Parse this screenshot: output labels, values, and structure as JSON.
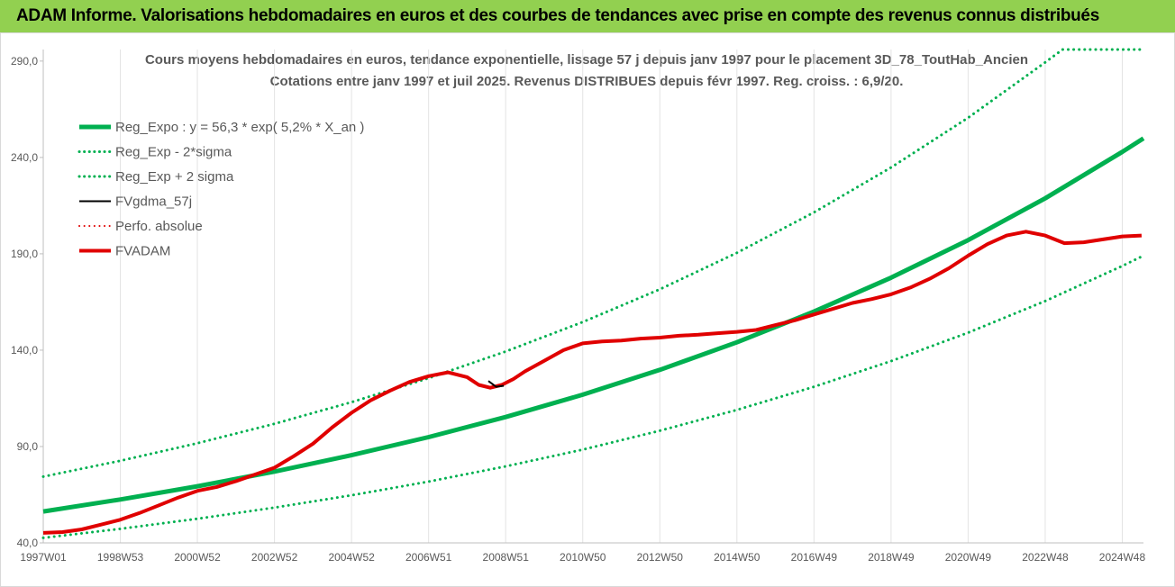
{
  "banner": {
    "title": "ADAM Informe. Valorisations hebdomadaires en euros et des courbes de tendances avec prise en compte des revenus connus distribués"
  },
  "chart_data": {
    "type": "line",
    "title": "Cours moyens hebdomadaires en euros, tendance exponentielle, lissage 57 j depuis janv 1997 pour le placement 3D_78_ToutHab_Ancien",
    "subtitle": "Cotations entre janv 1997 et juil 2025. Revenus DISTRIBUES depuis févr 1997. Reg. croiss. : 6,9/20.",
    "xlabel": "",
    "ylabel": "",
    "x_ticks": [
      "1997W01",
      "1998W53",
      "2000W52",
      "2002W52",
      "2004W52",
      "2006W51",
      "2008W51",
      "2010W50",
      "2012W50",
      "2014W50",
      "2016W49",
      "2018W49",
      "2020W49",
      "2022W48",
      "2024W48"
    ],
    "x_tick_years": [
      1997.0,
      1999.0,
      2001.0,
      2003.0,
      2005.0,
      2007.0,
      2009.0,
      2011.0,
      2013.0,
      2015.0,
      2017.0,
      2019.0,
      2021.0,
      2023.0,
      2025.0
    ],
    "x_range": [
      1997.0,
      2025.55
    ],
    "y_ticks": [
      "40,0",
      "90,0",
      "140,0",
      "190,0",
      "240,0",
      "290,0"
    ],
    "y_tick_values": [
      40,
      90,
      140,
      190,
      240,
      290
    ],
    "ylim": [
      40,
      296
    ],
    "grid": "vertical",
    "legend_position": "top-left",
    "colors": {
      "reg_expo": "#00b050",
      "bands": "#00b050",
      "fvgdma": "#000000",
      "perfo": "#e00000",
      "fvadam": "#e00000"
    },
    "series": [
      {
        "name": "Reg_Expo : y = 56,3 * exp( 5,2% *  X_an )",
        "style": "solid",
        "color": "#00b050",
        "width": 5,
        "x": [
          1997.0,
          1999.0,
          2001.0,
          2003.0,
          2005.0,
          2007.0,
          2009.0,
          2011.0,
          2013.0,
          2015.0,
          2017.0,
          2019.0,
          2021.0,
          2023.0,
          2025.0,
          2025.55
        ],
        "y": [
          56.3,
          62.5,
          69.4,
          77.0,
          85.5,
          94.9,
          105.3,
          116.9,
          129.8,
          144.1,
          160.0,
          177.6,
          197.1,
          218.8,
          242.9,
          249.9
        ]
      },
      {
        "name": "Reg_Exp - 2*sigma",
        "style": "dotted",
        "color": "#00b050",
        "width": 3,
        "x": [
          1997.0,
          1999.0,
          2001.0,
          2003.0,
          2005.0,
          2007.0,
          2009.0,
          2011.0,
          2013.0,
          2015.0,
          2017.0,
          2019.0,
          2021.0,
          2023.0,
          2025.0,
          2025.55
        ],
        "y": [
          42.6,
          47.3,
          52.5,
          58.3,
          64.7,
          71.8,
          79.7,
          88.4,
          98.2,
          109.0,
          121.0,
          134.3,
          149.1,
          165.5,
          183.7,
          189.0
        ]
      },
      {
        "name": "Reg_Exp + 2 sigma",
        "style": "dotted",
        "color": "#00b050",
        "width": 3,
        "x": [
          1997.0,
          1999.0,
          2001.0,
          2003.0,
          2005.0,
          2007.0,
          2009.0,
          2011.0,
          2013.0,
          2015.0,
          2017.0,
          2019.0,
          2021.0,
          2023.0,
          2023.45,
          2025.55
        ],
        "y": [
          74.4,
          82.6,
          91.7,
          101.8,
          113.0,
          125.5,
          139.3,
          154.6,
          171.6,
          190.5,
          211.5,
          234.8,
          260.6,
          289.3,
          296.0,
          296.0
        ]
      },
      {
        "name": "FVgdma_57j",
        "style": "solid",
        "color": "#000000",
        "width": 2,
        "x": [
          2008.55,
          2008.75,
          2008.95
        ],
        "y": [
          124.0,
          121.0,
          121.5
        ]
      },
      {
        "name": "Perfo. absolue",
        "style": "dotted",
        "color": "#e00000",
        "width": 2,
        "x": [],
        "y": []
      },
      {
        "name": "FVADAM",
        "style": "solid",
        "color": "#e00000",
        "width": 4,
        "x": [
          1997.0,
          1997.5,
          1998.0,
          1998.5,
          1999.0,
          1999.5,
          2000.0,
          2000.5,
          2001.0,
          2001.5,
          2002.0,
          2002.5,
          2003.0,
          2003.5,
          2004.0,
          2004.5,
          2005.0,
          2005.5,
          2006.0,
          2006.5,
          2007.0,
          2007.5,
          2008.0,
          2008.3,
          2008.6,
          2008.9,
          2009.2,
          2009.5,
          2010.0,
          2010.5,
          2011.0,
          2011.5,
          2012.0,
          2012.5,
          2013.0,
          2013.5,
          2014.0,
          2014.5,
          2015.0,
          2015.5,
          2016.0,
          2016.5,
          2017.0,
          2017.5,
          2018.0,
          2018.5,
          2019.0,
          2019.5,
          2020.0,
          2020.5,
          2021.0,
          2021.5,
          2022.0,
          2022.5,
          2023.0,
          2023.5,
          2024.0,
          2024.5,
          2025.0,
          2025.5
        ],
        "y": [
          45.2,
          45.6,
          47.0,
          49.5,
          52.0,
          55.5,
          59.5,
          63.5,
          67.0,
          69.0,
          72.0,
          75.5,
          79.0,
          85.0,
          91.5,
          100.0,
          107.5,
          114.0,
          119.0,
          123.5,
          126.5,
          128.5,
          126.0,
          122.0,
          120.5,
          122.0,
          125.0,
          129.0,
          134.5,
          140.0,
          143.5,
          144.5,
          145.0,
          146.0,
          146.5,
          147.5,
          148.0,
          148.8,
          149.5,
          150.5,
          153.0,
          155.5,
          158.5,
          161.5,
          164.5,
          166.5,
          169.0,
          172.5,
          177.0,
          182.5,
          189.0,
          195.0,
          199.5,
          201.5,
          199.5,
          195.5,
          196.0,
          197.5,
          199.0,
          199.5
        ]
      }
    ]
  }
}
